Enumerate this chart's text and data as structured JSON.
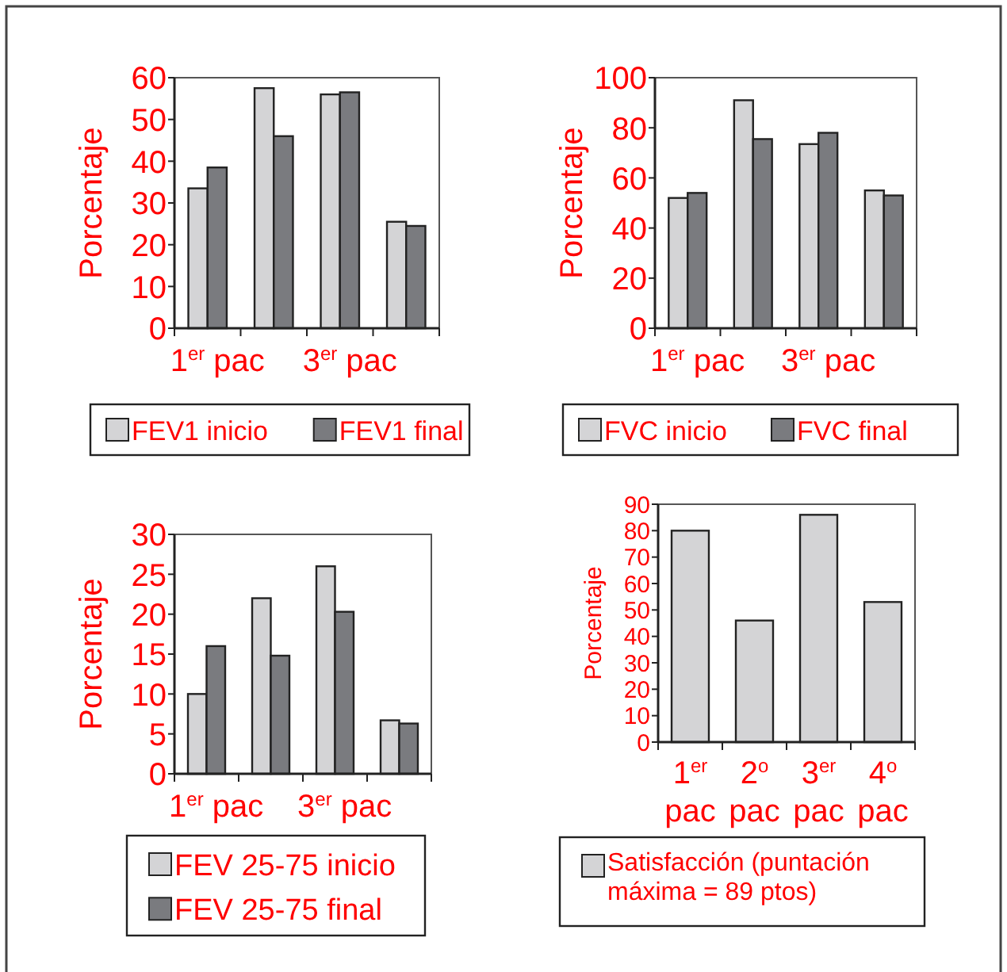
{
  "chart_data": [
    {
      "type": "bar",
      "categories": [
        "1$^{er}$ pac",
        null,
        "3$^{er}$ pac",
        null
      ],
      "ylabel": "Porcentaje",
      "ylim": [
        0,
        60
      ],
      "yticks": [
        0,
        10,
        20,
        30,
        40,
        50,
        60
      ],
      "legend": "bottom",
      "grid": false,
      "series": [
        {
          "name": "FEV1 inicio",
          "color": "#d4d4d6",
          "values": [
            33.5,
            57.5,
            56,
            25.5
          ]
        },
        {
          "name": "FEV1 final",
          "color": "#7a7b7f",
          "values": [
            38.5,
            46,
            56.5,
            24.5
          ]
        }
      ]
    },
    {
      "type": "bar",
      "categories": [
        "1$^{er}$ pac",
        null,
        "3$^{er}$ pac",
        null
      ],
      "ylabel": "Porcentaje",
      "ylim": [
        0,
        100
      ],
      "yticks": [
        0,
        20,
        40,
        60,
        80,
        100
      ],
      "legend": "bottom",
      "grid": false,
      "series": [
        {
          "name": "FVC inicio",
          "color": "#d4d4d6",
          "values": [
            52,
            91,
            73.5,
            55
          ]
        },
        {
          "name": "FVC final",
          "color": "#7a7b7f",
          "values": [
            54,
            75.5,
            78,
            53
          ]
        }
      ]
    },
    {
      "type": "bar",
      "categories": [
        "1$^{er}$ pac",
        null,
        "3$^{er}$ pac",
        null
      ],
      "ylabel": "Porcentaje",
      "ylim": [
        0,
        30
      ],
      "yticks": [
        0,
        5,
        10,
        15,
        20,
        25,
        30
      ],
      "legend": "bottom",
      "grid": false,
      "series": [
        {
          "name": "FEV 25-75 inicio",
          "color": "#d4d4d6",
          "values": [
            10,
            22,
            26,
            6.7
          ]
        },
        {
          "name": "FEV 25-75 final",
          "color": "#7a7b7f",
          "values": [
            16,
            14.8,
            20.3,
            6.3
          ]
        }
      ]
    },
    {
      "type": "bar",
      "categories": [
        "1$^{er}$ pac",
        "2$^{o}$ pac",
        "3$^{er}$ pac",
        "4$^{o}$ pac"
      ],
      "ylabel": "Porcentaje",
      "ylim": [
        0,
        90
      ],
      "yticks": [
        0,
        10,
        20,
        30,
        40,
        50,
        60,
        70,
        80,
        90
      ],
      "legend": "bottom",
      "grid": false,
      "series": [
        {
          "name": "Satisfacción (puntación máxima = 89 ptos)",
          "color": "#d4d4d6",
          "values": [
            80,
            46,
            86,
            53
          ]
        }
      ]
    }
  ]
}
